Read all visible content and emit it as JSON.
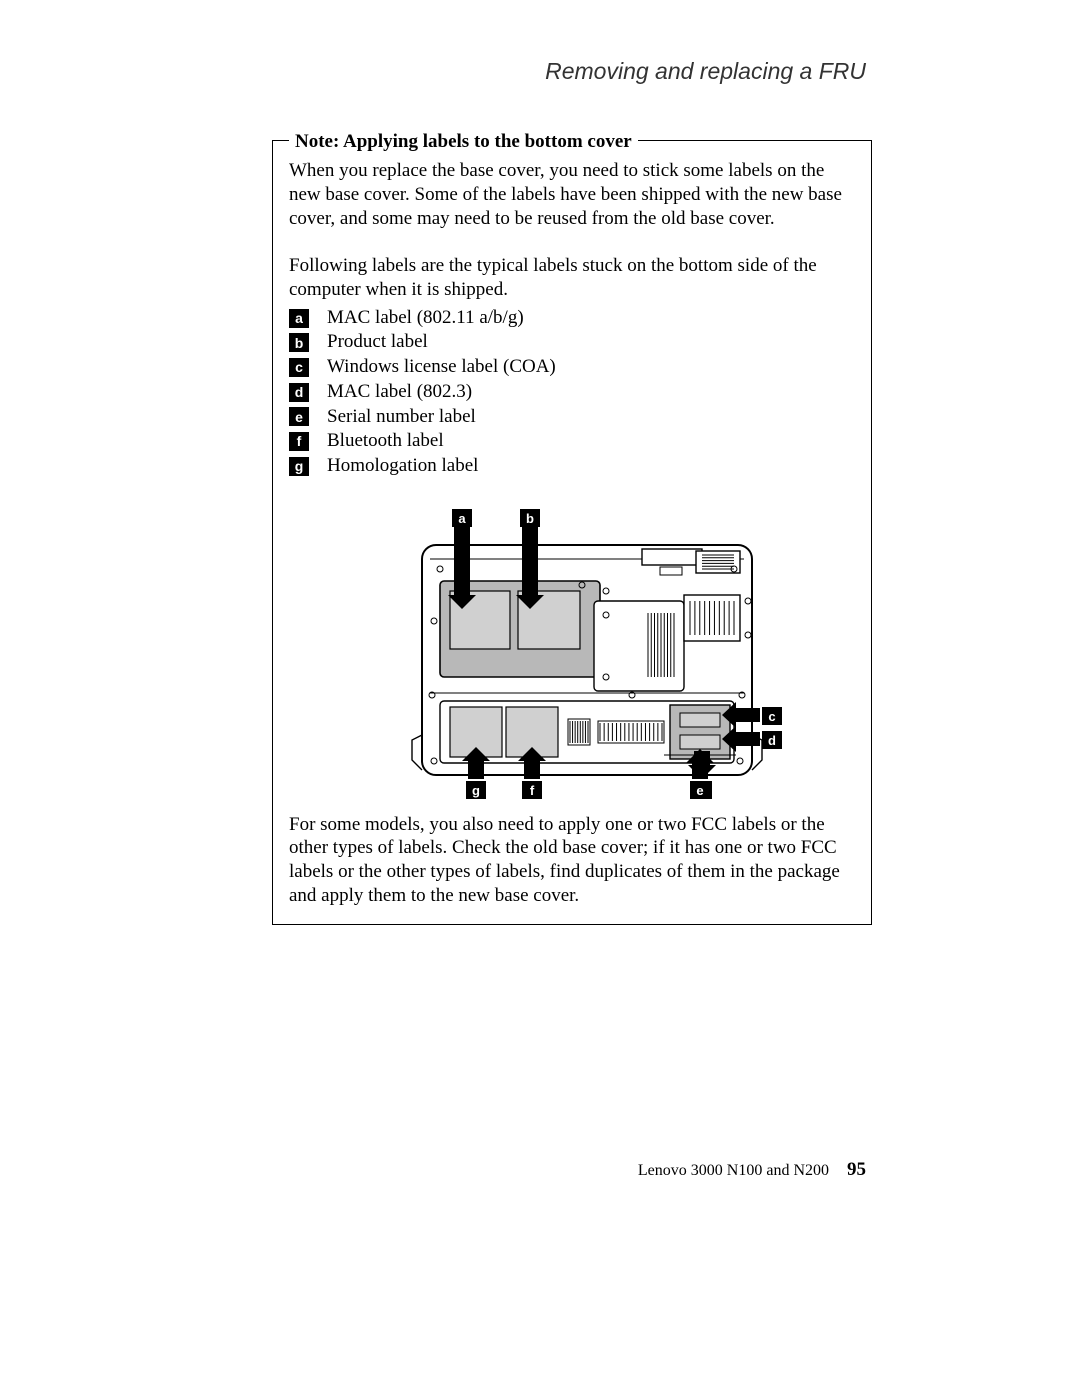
{
  "header": {
    "title": "Removing and replacing a FRU"
  },
  "note": {
    "title": "Note: Applying labels to the bottom cover",
    "para1": "When you replace the base cover, you need to stick some labels on the new base cover. Some of the labels have been shipped with the new base cover, and some may need to be reused from the old base cover.",
    "para2": "Following labels are the typical labels stuck on the bottom side of the computer when it is shipped.",
    "labels": {
      "a": {
        "tag": "a",
        "text": "MAC label (802.11 a/b/g)"
      },
      "b": {
        "tag": "b",
        "text": "Product label"
      },
      "c": {
        "tag": "c",
        "text": "Windows license label (COA)"
      },
      "d": {
        "tag": "d",
        "text": "MAC label (802.3)"
      },
      "e": {
        "tag": "e",
        "text": "Serial number label"
      },
      "f": {
        "tag": "f",
        "text": "Bluetooth label"
      },
      "g": {
        "tag": "g",
        "text": "Homologation label"
      }
    },
    "para3": "For some models, you also need to apply one or two FCC labels or the other types of labels. Check the old base cover; if it has one or two FCC labels or the other types of labels, find duplicates of them in the package and apply them to the new base cover."
  },
  "diagram": {
    "callouts": {
      "a": "a",
      "b": "b",
      "c": "c",
      "d": "d",
      "e": "e",
      "f": "f",
      "g": "g"
    },
    "colors": {
      "stroke": "#000000",
      "fill_light": "#d0d0d0",
      "fill_mid": "#b8b8b8",
      "fill_white": "#ffffff",
      "arrow": "#000000",
      "tag_bg": "#000000",
      "tag_fg": "#ffffff"
    }
  },
  "footer": {
    "book": "Lenovo 3000 N100 and N200",
    "page": "95"
  }
}
